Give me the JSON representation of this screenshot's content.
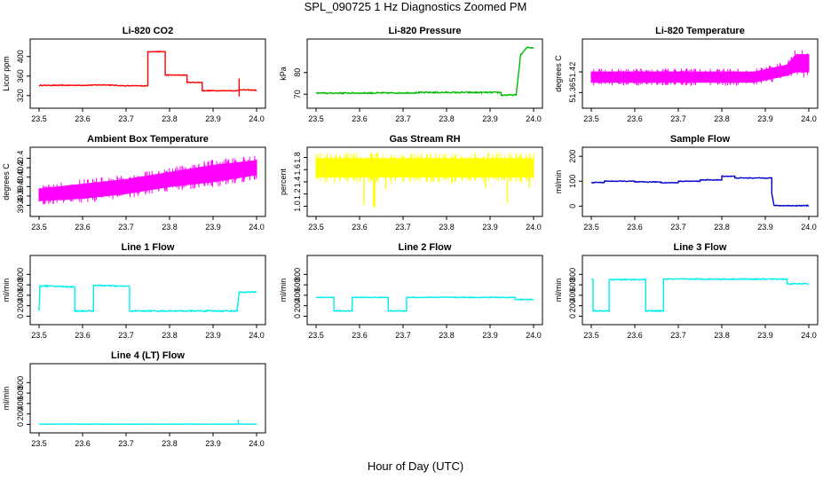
{
  "title": "SPL_090725  1 Hz Diagnostics Zoomed PM",
  "xlabel": "Hour of Day (UTC)",
  "chart_data": [
    {
      "type": "line",
      "title": "Li-820 CO2",
      "ylabel": "Licor ppm",
      "color": "#ff0000",
      "noise": 0.8,
      "xlim": [
        23.5,
        24.0
      ],
      "xticks": [
        "23.5",
        "23.6",
        "23.7",
        "23.8",
        "23.9",
        "24.0"
      ],
      "ylim": [
        305,
        425
      ],
      "yticks": [
        "320",
        "360",
        "400"
      ],
      "x": [
        23.5,
        23.6,
        23.65,
        23.7,
        23.75,
        23.75,
        23.79,
        23.79,
        23.84,
        23.84,
        23.875,
        23.875,
        23.96,
        23.96,
        24.0
      ],
      "y": [
        341,
        341,
        342,
        340,
        340,
        410,
        410,
        362,
        362,
        347,
        347,
        330,
        330,
        332,
        331
      ],
      "spikes": [
        [
          23.96,
          318,
          355
        ]
      ]
    },
    {
      "type": "line",
      "title": "Li-820 Pressure",
      "ylabel": "kPa",
      "color": "#00bb00",
      "noise": 0.3,
      "xlim": [
        23.5,
        24.0
      ],
      "xticks": [
        "23.5",
        "23.6",
        "23.7",
        "23.8",
        "23.9",
        "24.0"
      ],
      "ylim": [
        66,
        93
      ],
      "yticks": [
        "70",
        "80"
      ],
      "x": [
        23.5,
        23.7,
        23.75,
        23.925,
        23.925,
        23.96,
        23.97,
        23.985,
        24.0
      ],
      "y": [
        70.5,
        70.6,
        70.8,
        70.8,
        69.6,
        69.6,
        88,
        91.5,
        91.5
      ]
    },
    {
      "type": "band",
      "title": "Li-820 Temperature",
      "ylabel": "degrees C",
      "color": "#ff00ff",
      "xlim": [
        23.5,
        24.0
      ],
      "xticks": [
        "23.5",
        "23.6",
        "23.7",
        "23.8",
        "23.9",
        "24.0"
      ],
      "ylim": [
        51.33,
        51.5
      ],
      "yticks": [
        "51.36",
        "51.42"
      ],
      "x": [
        23.5,
        23.78,
        23.875,
        23.95,
        23.97,
        24.0
      ],
      "hi": [
        51.42,
        51.42,
        51.42,
        51.44,
        51.47,
        51.47
      ],
      "lo": [
        51.39,
        51.39,
        51.39,
        51.41,
        51.42,
        51.42
      ]
    },
    {
      "type": "band",
      "title": "Ambient Box Temperature",
      "ylabel": "degrees C",
      "color": "#ff00ff",
      "xlim": [
        23.5,
        24.0
      ],
      "xticks": [
        "23.5",
        "23.6",
        "23.7",
        "23.8",
        "23.9",
        "24.0"
      ],
      "ylim": [
        39.28,
        40.52
      ],
      "yticks": [
        "39.4",
        "39.6",
        "39.8",
        "40.0",
        "40.2",
        "40.4"
      ],
      "x": [
        23.5,
        23.6,
        23.7,
        23.8,
        23.9,
        24.0
      ],
      "hi": [
        39.75,
        39.85,
        39.95,
        40.1,
        40.25,
        40.35
      ],
      "lo": [
        39.5,
        39.55,
        39.65,
        39.8,
        39.9,
        40.05
      ]
    },
    {
      "type": "band",
      "title": "Gas Stream RH",
      "ylabel": "percent",
      "color": "#ffff00",
      "xlim": [
        23.5,
        24.0
      ],
      "xticks": [
        "23.5",
        "23.6",
        "23.7",
        "23.8",
        "23.9",
        "24.0"
      ],
      "ylim": [
        0.92,
        1.88
      ],
      "yticks": [
        "1.0",
        "1.2",
        "1.4",
        "1.6",
        "1.8"
      ],
      "x": [
        23.5,
        24.0
      ],
      "hi": [
        1.78,
        1.78
      ],
      "lo": [
        1.48,
        1.48
      ],
      "spikes": [
        [
          23.61,
          1.02,
          1.6
        ],
        [
          23.632,
          1.0,
          1.6
        ],
        [
          23.635,
          0.98,
          1.6
        ],
        [
          23.66,
          1.28,
          1.6
        ],
        [
          23.77,
          1.4,
          1.6
        ],
        [
          23.89,
          1.3,
          1.6
        ],
        [
          23.94,
          1.05,
          1.6
        ],
        [
          23.99,
          1.3,
          1.6
        ]
      ]
    },
    {
      "type": "line",
      "title": "Sample Flow",
      "ylabel": "ml/min",
      "color": "#0000cc",
      "noise": 1.5,
      "xlim": [
        23.5,
        24.0
      ],
      "xticks": [
        "23.5",
        "23.6",
        "23.7",
        "23.8",
        "23.9",
        "24.0"
      ],
      "ylim": [
        -20,
        215
      ],
      "yticks": [
        "0",
        "100",
        "200"
      ],
      "x": [
        23.5,
        23.53,
        23.53,
        23.6,
        23.6,
        23.66,
        23.66,
        23.7,
        23.7,
        23.75,
        23.75,
        23.8,
        23.8,
        23.83,
        23.83,
        23.915,
        23.915,
        23.92,
        23.93,
        24.0
      ],
      "y": [
        95,
        95,
        100,
        100,
        97,
        97,
        94,
        94,
        100,
        100,
        105,
        105,
        120,
        120,
        113,
        113,
        50,
        3,
        2,
        2
      ]
    },
    {
      "type": "line",
      "title": "Line 1 Flow",
      "ylabel": "ml/min",
      "color": "#00eeee",
      "noise": 12,
      "xlim": [
        23.5,
        24.0
      ],
      "xticks": [
        "23.5",
        "23.6",
        "23.7",
        "23.8",
        "23.9",
        "24.0"
      ],
      "ylim": [
        -60,
        1060
      ],
      "yticks": [
        "0",
        "200",
        "400",
        "600",
        "800"
      ],
      "x": [
        23.5,
        23.502,
        23.582,
        23.582,
        23.625,
        23.625,
        23.708,
        23.708,
        23.955,
        23.96,
        24.0
      ],
      "y": [
        100,
        580,
        560,
        100,
        100,
        590,
        570,
        100,
        100,
        460,
        460
      ]
    },
    {
      "type": "line",
      "title": "Line 2 Flow",
      "ylabel": "ml/min",
      "color": "#00eeee",
      "noise": 8,
      "xlim": [
        23.5,
        24.0
      ],
      "xticks": [
        "23.5",
        "23.6",
        "23.7",
        "23.8",
        "23.9",
        "24.0"
      ],
      "ylim": [
        -60,
        1060
      ],
      "yticks": [
        "0",
        "200",
        "400",
        "600",
        "800"
      ],
      "x": [
        23.5,
        23.541,
        23.541,
        23.583,
        23.583,
        23.666,
        23.666,
        23.708,
        23.708,
        23.958,
        23.958,
        24.0
      ],
      "y": [
        360,
        360,
        100,
        100,
        360,
        360,
        100,
        100,
        360,
        360,
        320,
        320
      ]
    },
    {
      "type": "line",
      "title": "Line 3 Flow",
      "ylabel": "ml/min",
      "color": "#00eeee",
      "noise": 10,
      "xlim": [
        23.5,
        24.0
      ],
      "xticks": [
        "23.5",
        "23.6",
        "23.7",
        "23.8",
        "23.9",
        "24.0"
      ],
      "ylim": [
        -60,
        1060
      ],
      "yticks": [
        "0",
        "200",
        "400",
        "600",
        "800"
      ],
      "x": [
        23.5,
        23.5,
        23.504,
        23.504,
        23.541,
        23.541,
        23.625,
        23.625,
        23.666,
        23.666,
        23.95,
        23.95,
        24.0
      ],
      "y": [
        700,
        700,
        700,
        100,
        100,
        700,
        700,
        100,
        100,
        710,
        710,
        620,
        620
      ]
    },
    {
      "type": "line",
      "title": "Line 4 (LT) Flow",
      "ylabel": "ml/min",
      "color": "#00eeee",
      "noise": 3,
      "xlim": [
        23.5,
        24.0
      ],
      "xticks": [
        "23.5",
        "23.6",
        "23.7",
        "23.8",
        "23.9",
        "24.0"
      ],
      "ylim": [
        -60,
        1060
      ],
      "yticks": [
        "0",
        "200",
        "400",
        "600",
        "800"
      ],
      "x": [
        23.5,
        24.0
      ],
      "y": [
        5,
        5
      ],
      "spikes": [
        [
          23.958,
          0,
          90
        ]
      ]
    }
  ]
}
